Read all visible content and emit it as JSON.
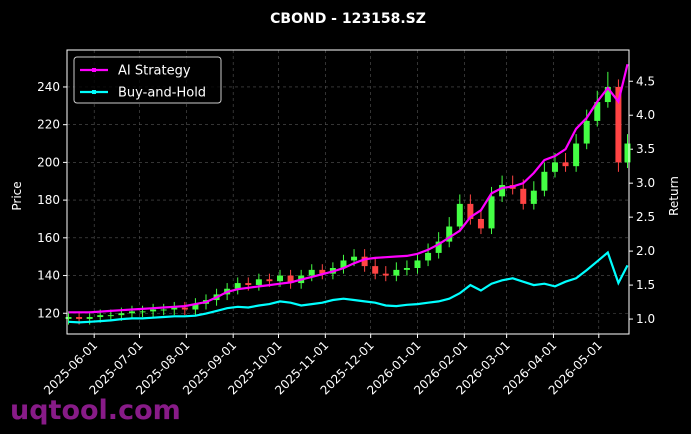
{
  "chart_data": {
    "type": "candlestick",
    "title": "CBOND - 123158.SZ",
    "ylabel": "Price",
    "y2label": "Return",
    "watermark": "uqtool.com",
    "x": [
      "2025-05-15",
      "2025-05-22",
      "2025-05-29",
      "2025-06-05",
      "2025-06-12",
      "2025-06-19",
      "2025-06-26",
      "2025-07-03",
      "2025-07-10",
      "2025-07-17",
      "2025-07-24",
      "2025-07-31",
      "2025-08-07",
      "2025-08-14",
      "2025-08-21",
      "2025-08-28",
      "2025-09-04",
      "2025-09-11",
      "2025-09-18",
      "2025-09-25",
      "2025-10-02",
      "2025-10-09",
      "2025-10-16",
      "2025-10-23",
      "2025-10-30",
      "2025-11-06",
      "2025-11-13",
      "2025-11-20",
      "2025-11-27",
      "2025-12-04",
      "2025-12-11",
      "2025-12-18",
      "2025-12-25",
      "2026-01-01",
      "2026-01-08",
      "2026-01-15",
      "2026-01-22",
      "2026-01-29",
      "2026-02-05",
      "2026-02-12",
      "2026-02-19",
      "2026-02-26",
      "2026-03-05",
      "2026-03-12",
      "2026-03-19",
      "2026-03-26",
      "2026-04-02",
      "2026-04-09",
      "2026-04-16",
      "2026-04-23",
      "2026-04-30",
      "2026-05-07",
      "2026-05-14",
      "2026-05-20"
    ],
    "open": [
      117,
      118,
      117,
      118,
      119,
      119,
      120,
      121,
      121,
      122,
      122,
      123,
      122,
      125,
      127,
      130,
      133,
      136,
      135,
      138,
      137,
      140,
      136,
      140,
      143,
      141,
      144,
      148,
      150,
      145,
      141,
      140,
      143,
      144,
      148,
      152,
      158,
      166,
      178,
      170,
      165,
      182,
      188,
      186,
      178,
      185,
      195,
      200,
      198,
      210,
      222,
      232,
      240,
      200
    ],
    "high": [
      121,
      121,
      121,
      122,
      122,
      123,
      124,
      124,
      125,
      125,
      126,
      126,
      128,
      130,
      133,
      136,
      139,
      139,
      141,
      141,
      143,
      143,
      143,
      146,
      146,
      147,
      151,
      154,
      154,
      149,
      145,
      147,
      148,
      152,
      157,
      163,
      171,
      183,
      183,
      175,
      187,
      193,
      193,
      191,
      190,
      200,
      205,
      205,
      215,
      228,
      238,
      248,
      244,
      215
    ],
    "low": [
      114,
      114,
      114,
      115,
      116,
      116,
      117,
      118,
      118,
      119,
      119,
      119,
      119,
      122,
      124,
      127,
      130,
      132,
      132,
      134,
      134,
      133,
      133,
      137,
      138,
      138,
      141,
      145,
      142,
      138,
      137,
      137,
      140,
      141,
      145,
      149,
      155,
      163,
      167,
      162,
      162,
      179,
      183,
      175,
      175,
      182,
      192,
      195,
      195,
      207,
      219,
      229,
      195,
      197
    ],
    "close": [
      118,
      117,
      118,
      119,
      119,
      120,
      121,
      121,
      122,
      122,
      123,
      122,
      125,
      127,
      130,
      133,
      136,
      135,
      138,
      137,
      140,
      136,
      140,
      143,
      141,
      144,
      148,
      150,
      145,
      141,
      140,
      143,
      144,
      148,
      152,
      158,
      166,
      178,
      170,
      165,
      182,
      188,
      186,
      178,
      185,
      195,
      200,
      198,
      210,
      222,
      232,
      240,
      200,
      210
    ],
    "up_color": "#44ff44",
    "down_color": "#ff4444",
    "series": [
      {
        "name": "AI Strategy",
        "color": "#ff00ff",
        "axis": "y2",
        "values": [
          1.1,
          1.1,
          1.1,
          1.11,
          1.12,
          1.13,
          1.14,
          1.15,
          1.16,
          1.17,
          1.18,
          1.19,
          1.22,
          1.25,
          1.32,
          1.4,
          1.44,
          1.46,
          1.48,
          1.5,
          1.52,
          1.54,
          1.58,
          1.62,
          1.66,
          1.7,
          1.75,
          1.82,
          1.88,
          1.9,
          1.91,
          1.92,
          1.93,
          1.96,
          2.02,
          2.1,
          2.2,
          2.3,
          2.5,
          2.6,
          2.85,
          2.93,
          2.95,
          3.0,
          3.15,
          3.34,
          3.4,
          3.5,
          3.8,
          3.96,
          4.2,
          4.4,
          4.2,
          4.75
        ]
      },
      {
        "name": "Buy-and-Hold",
        "color": "#00ffff",
        "axis": "y2",
        "values": [
          0.96,
          0.95,
          0.96,
          0.97,
          0.98,
          1.0,
          1.01,
          1.01,
          1.02,
          1.03,
          1.04,
          1.04,
          1.05,
          1.08,
          1.12,
          1.16,
          1.18,
          1.17,
          1.2,
          1.22,
          1.26,
          1.24,
          1.2,
          1.22,
          1.24,
          1.28,
          1.3,
          1.28,
          1.26,
          1.24,
          1.2,
          1.19,
          1.21,
          1.22,
          1.24,
          1.26,
          1.3,
          1.38,
          1.5,
          1.42,
          1.52,
          1.57,
          1.6,
          1.55,
          1.5,
          1.52,
          1.48,
          1.55,
          1.6,
          1.72,
          1.85,
          1.98,
          1.53,
          1.79
        ]
      }
    ],
    "xlim": [
      "2025-05-14",
      "2026-05-21"
    ],
    "xticks": [
      "2025-06-01",
      "2025-07-01",
      "2025-08-01",
      "2025-09-01",
      "2025-10-01",
      "2025-11-01",
      "2025-12-01",
      "2026-01-01",
      "2026-02-01",
      "2026-03-01",
      "2026-04-01",
      "2026-05-01"
    ],
    "ylim": [
      109,
      259.6
    ],
    "yticks": [
      120,
      140,
      160,
      180,
      200,
      220,
      240
    ],
    "y2lim": [
      0.78,
      4.96
    ],
    "y2ticks": [
      {
        "value": 1.0,
        "label": "1.0"
      },
      {
        "value": 1.5,
        "label": "1.5"
      },
      {
        "value": 2.0,
        "label": "2.0"
      },
      {
        "value": 2.5,
        "label": "2.5"
      },
      {
        "value": 3.0,
        "label": "3.0"
      },
      {
        "value": 3.5,
        "label": "3.5"
      },
      {
        "value": 4.0,
        "label": "4.0"
      },
      {
        "value": 4.5,
        "label": "4.5"
      }
    ],
    "grid": true,
    "legend": "upper left"
  }
}
